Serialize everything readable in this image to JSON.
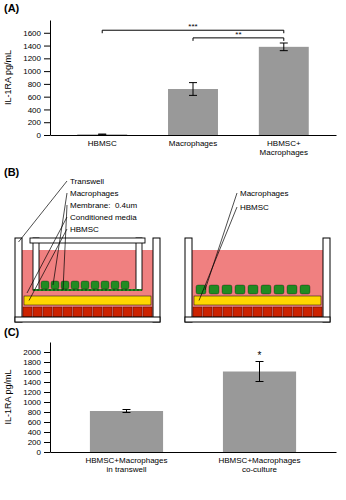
{
  "chart_data": [
    {
      "type": "bar",
      "title": "(A)",
      "categories": [
        "HBMSC",
        "Macrophages",
        "HBMSC+\nMacrophages"
      ],
      "values": [
        10,
        720,
        1380
      ],
      "errors": [
        5,
        100,
        60
      ],
      "color": "#999999",
      "ylabel": "IL-1RA pg/mL",
      "ylim": [
        0,
        1800
      ],
      "yticks": [
        0,
        200,
        400,
        600,
        800,
        1000,
        1200,
        1400,
        1600
      ],
      "annotations": [
        {
          "text": "***",
          "from": "HBMSC",
          "to": "HBMSC+\nMacrophages",
          "y": 1640
        },
        {
          "text": "**",
          "from": "Macrophages",
          "to": "HBMSC+\nMacrophages",
          "y": 1520
        }
      ]
    },
    {
      "type": "diagram",
      "title": "(B)",
      "annotations": [
        "Transwell",
        "Macrophages",
        "Membrane:  0.4um",
        "Conditioned media",
        "HBMSC",
        "Macrophages",
        "HBMSC"
      ],
      "colors": [
        "#f08080",
        "#228B22",
        "#FFD700",
        "#cc2200"
      ]
    },
    {
      "type": "bar",
      "title": "(C)",
      "categories": [
        "HBMSC+Macrophages\nin transwell",
        "HBMSC+Macrophages\nco-culture"
      ],
      "values": [
        820,
        1610
      ],
      "errors": [
        30,
        200
      ],
      "color": "#999999",
      "ylabel": "IL-1RA pg/mL",
      "ylim": [
        0,
        2200
      ],
      "yticks": [
        0,
        200,
        400,
        600,
        800,
        1000,
        1200,
        1400,
        1600,
        1800,
        2000
      ],
      "annotations": [
        {
          "text": "*",
          "category": "HBMSC+Macrophages\nco-culture",
          "y": 1870
        }
      ]
    }
  ]
}
